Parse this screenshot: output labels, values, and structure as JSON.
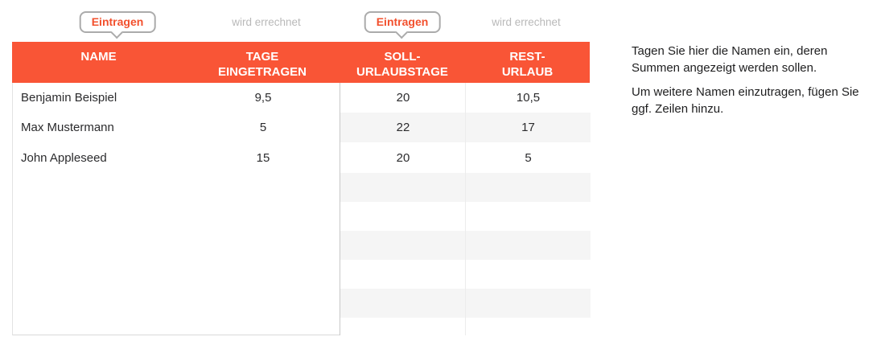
{
  "annotations": {
    "badge1": "Eintragen",
    "calc1": "wird errechnet",
    "badge2": "Eintragen",
    "calc2": "wird errechnet"
  },
  "table": {
    "headers": [
      {
        "lines": [
          "NAME"
        ]
      },
      {
        "lines": [
          "TAGE",
          "EINGETRAGEN"
        ]
      },
      {
        "lines": [
          "SOLL-",
          "URLAUBSTAGE"
        ]
      },
      {
        "lines": [
          "REST-",
          "URLAUB"
        ]
      }
    ],
    "rows": [
      {
        "name": "Benjamin Beispiel",
        "tage": "9,5",
        "soll": "20",
        "rest": "10,5"
      },
      {
        "name": "Max Mustermann",
        "tage": "5",
        "soll": "22",
        "rest": "17"
      },
      {
        "name": "John Appleseed",
        "tage": "15",
        "soll": "20",
        "rest": "5"
      }
    ],
    "empty_row_count": 6
  },
  "note": {
    "p1": "Tagen Sie hier die Namen ein, deren Summen angezeigt werden sollen.",
    "p2": "Um weitere Namen einzutragen, fügen Sie ggf. Zeilen hinzu."
  },
  "colors": {
    "header_orange": "#f95536",
    "badge_text_orange": "#f2502d",
    "calc_label_gray": "#b9b9b9",
    "stripe_gray": "#f5f5f5",
    "divider_gray": "#c8c8c8"
  }
}
